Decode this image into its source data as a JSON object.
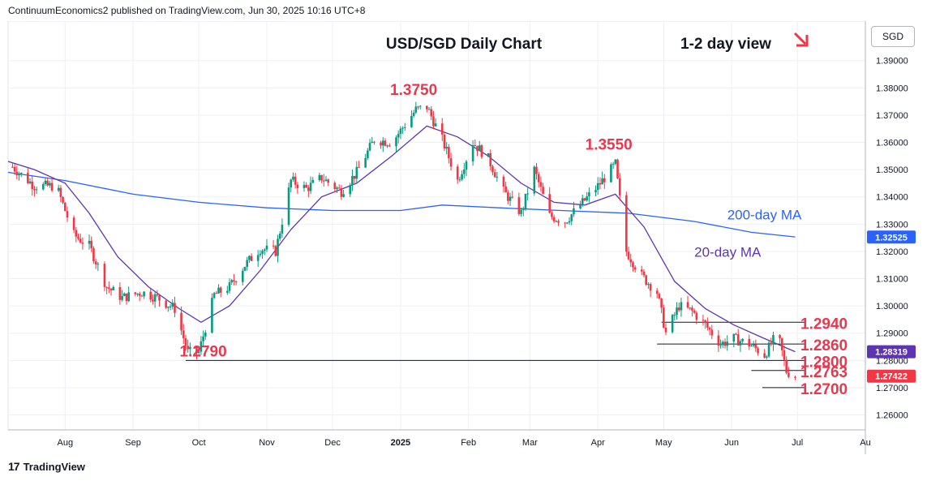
{
  "header": {
    "publisher_line": "ContinuumEconomics2 published on TradingView.com, Jun 30, 2025 10:16 UTC+8"
  },
  "currency_button": "SGD",
  "footer": {
    "brand": "TradingView",
    "logo_mark": "17"
  },
  "chart_data": {
    "type": "candlestick",
    "title": "USD/SGD Daily Chart",
    "view_note": "1-2 day view",
    "view_arrow_icon": "arrow-down-right-icon",
    "ylim": [
      1.2545,
      1.4045
    ],
    "y_ticks": [
      "1.26000",
      "1.27000",
      "1.28000",
      "1.29000",
      "1.30000",
      "1.31000",
      "1.32000",
      "1.33000",
      "1.34000",
      "1.35000",
      "1.36000",
      "1.37000",
      "1.38000",
      "1.39000"
    ],
    "y_tick_values": [
      1.26,
      1.27,
      1.28,
      1.29,
      1.3,
      1.31,
      1.32,
      1.33,
      1.34,
      1.35,
      1.36,
      1.37,
      1.38,
      1.39
    ],
    "x_ticks": [
      "Aug",
      "Sep",
      "Oct",
      "Nov",
      "Dec",
      "2025",
      "Feb",
      "Mar",
      "Apr",
      "May",
      "Jun",
      "Jul",
      "Au"
    ],
    "x_tick_dates": [
      "2024-08-01",
      "2024-09-01",
      "2024-10-01",
      "2024-11-01",
      "2024-12-01",
      "2025-01-01",
      "2025-02-01",
      "2025-03-01",
      "2025-04-01",
      "2025-05-01",
      "2025-06-01",
      "2025-07-01",
      "2025-08-01"
    ],
    "x_start_date": "2024-07-06",
    "x_end_date": "2025-08-01",
    "last_date": "2025-06-30",
    "price_path": [
      {
        "date": "2024-07-08",
        "close": 1.351
      },
      {
        "date": "2024-07-18",
        "close": 1.344
      },
      {
        "date": "2024-07-28",
        "close": 1.344
      },
      {
        "date": "2024-08-05",
        "close": 1.326
      },
      {
        "date": "2024-08-12",
        "close": 1.322
      },
      {
        "date": "2024-08-20",
        "close": 1.307
      },
      {
        "date": "2024-08-27",
        "close": 1.303
      },
      {
        "date": "2024-09-05",
        "close": 1.305
      },
      {
        "date": "2024-09-12",
        "close": 1.303
      },
      {
        "date": "2024-09-20",
        "close": 1.299
      },
      {
        "date": "2024-09-26",
        "close": 1.283
      },
      {
        "date": "2024-10-01",
        "close": 1.283
      },
      {
        "date": "2024-10-08",
        "close": 1.304
      },
      {
        "date": "2024-10-15",
        "close": 1.307
      },
      {
        "date": "2024-10-22",
        "close": 1.315
      },
      {
        "date": "2024-10-29",
        "close": 1.321
      },
      {
        "date": "2024-11-05",
        "close": 1.32
      },
      {
        "date": "2024-11-12",
        "close": 1.346
      },
      {
        "date": "2024-11-19",
        "close": 1.343
      },
      {
        "date": "2024-11-26",
        "close": 1.347
      },
      {
        "date": "2024-12-05",
        "close": 1.342
      },
      {
        "date": "2024-12-12",
        "close": 1.349
      },
      {
        "date": "2024-12-20",
        "close": 1.361
      },
      {
        "date": "2024-12-28",
        "close": 1.36
      },
      {
        "date": "2025-01-08",
        "close": 1.372
      },
      {
        "date": "2025-01-13",
        "close": 1.373
      },
      {
        "date": "2025-01-20",
        "close": 1.361
      },
      {
        "date": "2025-01-27",
        "close": 1.346
      },
      {
        "date": "2025-02-03",
        "close": 1.36
      },
      {
        "date": "2025-02-10",
        "close": 1.354
      },
      {
        "date": "2025-02-17",
        "close": 1.342
      },
      {
        "date": "2025-02-25",
        "close": 1.334
      },
      {
        "date": "2025-03-03",
        "close": 1.35
      },
      {
        "date": "2025-03-10",
        "close": 1.333
      },
      {
        "date": "2025-03-17",
        "close": 1.331
      },
      {
        "date": "2025-03-24",
        "close": 1.337
      },
      {
        "date": "2025-04-01",
        "close": 1.344
      },
      {
        "date": "2025-04-09",
        "close": 1.352
      },
      {
        "date": "2025-04-14",
        "close": 1.32
      },
      {
        "date": "2025-04-21",
        "close": 1.311
      },
      {
        "date": "2025-04-28",
        "close": 1.305
      },
      {
        "date": "2025-05-02",
        "close": 1.29
      },
      {
        "date": "2025-05-08",
        "close": 1.3
      },
      {
        "date": "2025-05-14",
        "close": 1.298
      },
      {
        "date": "2025-05-20",
        "close": 1.293
      },
      {
        "date": "2025-05-27",
        "close": 1.286
      },
      {
        "date": "2025-06-02",
        "close": 1.288
      },
      {
        "date": "2025-06-09",
        "close": 1.286
      },
      {
        "date": "2025-06-16",
        "close": 1.282
      },
      {
        "date": "2025-06-22",
        "close": 1.29
      },
      {
        "date": "2025-06-26",
        "close": 1.276
      },
      {
        "date": "2025-06-30",
        "close": 1.2742
      }
    ],
    "series": [
      {
        "name": "200-day MA",
        "color": "#2962ff",
        "points": [
          {
            "date": "2024-07-06",
            "value": 1.349
          },
          {
            "date": "2024-08-01",
            "value": 1.346
          },
          {
            "date": "2024-09-01",
            "value": 1.341
          },
          {
            "date": "2024-10-01",
            "value": 1.338
          },
          {
            "date": "2024-11-01",
            "value": 1.336
          },
          {
            "date": "2024-12-01",
            "value": 1.335
          },
          {
            "date": "2025-01-01",
            "value": 1.335
          },
          {
            "date": "2025-01-20",
            "value": 1.337
          },
          {
            "date": "2025-02-15",
            "value": 1.336
          },
          {
            "date": "2025-03-15",
            "value": 1.335
          },
          {
            "date": "2025-04-15",
            "value": 1.334
          },
          {
            "date": "2025-05-15",
            "value": 1.331
          },
          {
            "date": "2025-06-10",
            "value": 1.327
          },
          {
            "date": "2025-06-30",
            "value": 1.3253
          }
        ]
      },
      {
        "name": "20-day MA",
        "color": "#5e35b1",
        "points": [
          {
            "date": "2024-07-06",
            "value": 1.353
          },
          {
            "date": "2024-07-18",
            "value": 1.35
          },
          {
            "date": "2024-08-01",
            "value": 1.345
          },
          {
            "date": "2024-08-12",
            "value": 1.334
          },
          {
            "date": "2024-08-25",
            "value": 1.318
          },
          {
            "date": "2024-09-08",
            "value": 1.307
          },
          {
            "date": "2024-09-22",
            "value": 1.299
          },
          {
            "date": "2024-10-02",
            "value": 1.294
          },
          {
            "date": "2024-10-15",
            "value": 1.3
          },
          {
            "date": "2024-10-29",
            "value": 1.313
          },
          {
            "date": "2024-11-12",
            "value": 1.328
          },
          {
            "date": "2024-11-26",
            "value": 1.34
          },
          {
            "date": "2024-12-12",
            "value": 1.345
          },
          {
            "date": "2024-12-28",
            "value": 1.355
          },
          {
            "date": "2025-01-13",
            "value": 1.366
          },
          {
            "date": "2025-01-27",
            "value": 1.362
          },
          {
            "date": "2025-02-10",
            "value": 1.355
          },
          {
            "date": "2025-02-25",
            "value": 1.345
          },
          {
            "date": "2025-03-12",
            "value": 1.338
          },
          {
            "date": "2025-03-26",
            "value": 1.337
          },
          {
            "date": "2025-04-09",
            "value": 1.341
          },
          {
            "date": "2025-04-22",
            "value": 1.329
          },
          {
            "date": "2025-05-06",
            "value": 1.309
          },
          {
            "date": "2025-05-20",
            "value": 1.299
          },
          {
            "date": "2025-06-02",
            "value": 1.293
          },
          {
            "date": "2025-06-16",
            "value": 1.288
          },
          {
            "date": "2025-06-30",
            "value": 1.2832
          }
        ]
      }
    ],
    "price_labels": [
      {
        "text": "1.32525",
        "value": 1.32525,
        "color": "#2962ff"
      },
      {
        "text": "1.28319",
        "value": 1.28319,
        "color": "#5e35b1"
      },
      {
        "text": "1.27422",
        "value": 1.27422,
        "color": "#f23645"
      }
    ],
    "levels": [
      {
        "label": "1.2940",
        "value": 1.294,
        "from": "2025-04-30",
        "to": "2025-06-30"
      },
      {
        "label": "1.2860",
        "value": 1.286,
        "from": "2025-04-28",
        "to": "2025-06-30"
      },
      {
        "label": "1.2800",
        "value": 1.28,
        "from": "2024-09-25",
        "to": "2025-06-30"
      },
      {
        "label": "1.2763",
        "value": 1.2763,
        "from": "2025-06-10",
        "to": "2025-06-30"
      },
      {
        "label": "1.2700",
        "value": 1.27,
        "from": "2025-06-15",
        "to": "2025-06-30"
      }
    ],
    "annotations": [
      {
        "text": "1.3750",
        "value": 1.375,
        "date": "2025-01-07"
      },
      {
        "text": "1.3550",
        "value": 1.355,
        "date": "2025-04-06"
      },
      {
        "text": "1.2790",
        "value": 1.279,
        "date": "2024-10-03"
      },
      {
        "text": "200-day MA",
        "color": "#2962ff",
        "value": 1.3317,
        "date": "2025-05-30"
      },
      {
        "text": "20-day MA",
        "color": "#5e35b1",
        "value": 1.3181,
        "date": "2025-05-15"
      }
    ],
    "colors": {
      "up": "#089981",
      "down": "#f23645",
      "text_red": "#e53950",
      "grid": "#eef0f3"
    }
  }
}
